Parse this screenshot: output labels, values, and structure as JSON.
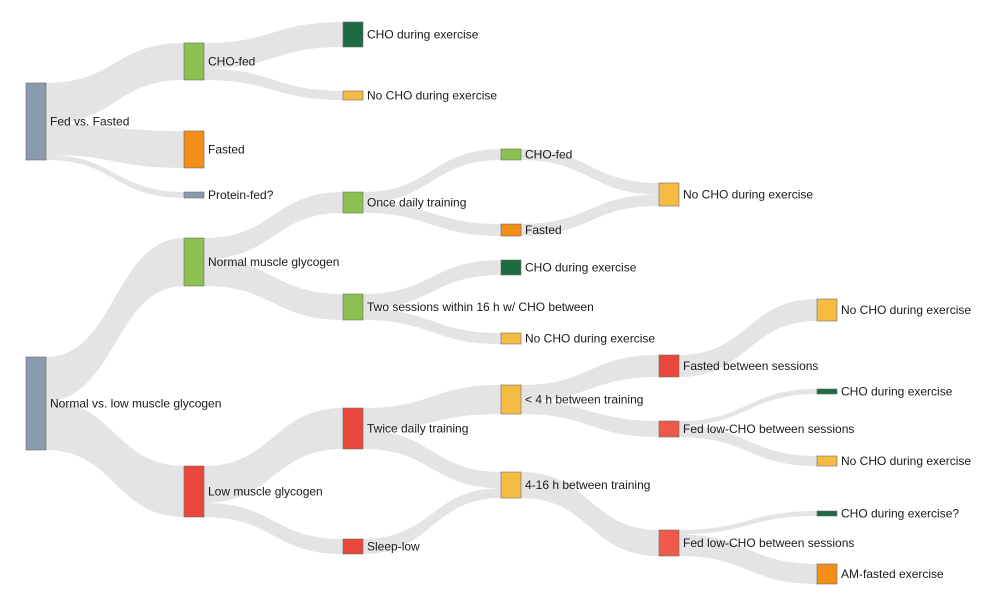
{
  "colors": {
    "slate": "#8b9bae",
    "light_green": "#8cc152",
    "dark_green": "#1e6a43",
    "yellow": "#f6bb42",
    "orange": "#f28d17",
    "red": "#e9473b",
    "red_light": "#ee5a4a",
    "flow": "#e4e4e4"
  },
  "nodes": [
    {
      "id": "fed_vs_fasted",
      "label": "Fed vs. Fasted",
      "color": "slate"
    },
    {
      "id": "cho_fed_1",
      "label": "CHO-fed",
      "color": "light_green"
    },
    {
      "id": "fasted_1",
      "label": "Fasted",
      "color": "orange"
    },
    {
      "id": "protein_fed",
      "label": "Protein-fed?",
      "color": "slate"
    },
    {
      "id": "cho_during_1",
      "label": "CHO during exercise",
      "color": "dark_green"
    },
    {
      "id": "no_cho_during_1",
      "label": "No CHO during exercise",
      "color": "yellow"
    },
    {
      "id": "normal_vs_low",
      "label": "Normal vs. low muscle glycogen",
      "color": "slate"
    },
    {
      "id": "normal_glycogen",
      "label": "Normal muscle glycogen",
      "color": "light_green"
    },
    {
      "id": "low_glycogen",
      "label": "Low muscle glycogen",
      "color": "red"
    },
    {
      "id": "once_daily",
      "label": "Once daily training",
      "color": "light_green"
    },
    {
      "id": "two_sessions",
      "label": "Two sessions within 16 h w/ CHO between",
      "color": "light_green"
    },
    {
      "id": "twice_daily",
      "label": "Twice daily training",
      "color": "red"
    },
    {
      "id": "sleep_low",
      "label": "Sleep-low",
      "color": "red"
    },
    {
      "id": "cho_fed_2",
      "label": "CHO-fed",
      "color": "light_green"
    },
    {
      "id": "fasted_2",
      "label": "Fasted",
      "color": "orange"
    },
    {
      "id": "cho_during_2",
      "label": "CHO during exercise",
      "color": "dark_green"
    },
    {
      "id": "no_cho_during_2",
      "label": "No CHO during exercise",
      "color": "yellow"
    },
    {
      "id": "lt4h",
      "label": "< 4 h between training",
      "color": "yellow"
    },
    {
      "id": "4to16h",
      "label": "4-16 h between training",
      "color": "yellow"
    },
    {
      "id": "no_cho_during_3",
      "label": "No CHO during exercise",
      "color": "yellow"
    },
    {
      "id": "fasted_between",
      "label": "Fasted between sessions",
      "color": "red"
    },
    {
      "id": "fed_lowcho_1",
      "label": "Fed low-CHO between sessions",
      "color": "red_light"
    },
    {
      "id": "fed_lowcho_2",
      "label": "Fed low-CHO between sessions",
      "color": "red_light"
    },
    {
      "id": "no_cho_during_4",
      "label": "No CHO during exercise",
      "color": "yellow"
    },
    {
      "id": "cho_during_3",
      "label": "CHO during exercise",
      "color": "dark_green"
    },
    {
      "id": "no_cho_during_5",
      "label": "No CHO during exercise",
      "color": "yellow"
    },
    {
      "id": "cho_during_q",
      "label": "CHO during exercise?",
      "color": "dark_green"
    },
    {
      "id": "am_fasted",
      "label": "AM-fasted exercise",
      "color": "orange"
    }
  ],
  "links": [
    {
      "source": "fed_vs_fasted",
      "target": "cho_fed_1",
      "value": 4
    },
    {
      "source": "fed_vs_fasted",
      "target": "fasted_1",
      "value": 3
    },
    {
      "source": "fed_vs_fasted",
      "target": "protein_fed",
      "value": 0.5
    },
    {
      "source": "cho_fed_1",
      "target": "cho_during_1",
      "value": 2.7
    },
    {
      "source": "cho_fed_1",
      "target": "no_cho_during_1",
      "value": 1.2
    },
    {
      "source": "normal_vs_low",
      "target": "normal_glycogen",
      "value": 4.5
    },
    {
      "source": "normal_vs_low",
      "target": "low_glycogen",
      "value": 5
    },
    {
      "source": "normal_glycogen",
      "target": "once_daily",
      "value": 2.2
    },
    {
      "source": "normal_glycogen",
      "target": "two_sessions",
      "value": 2.8
    },
    {
      "source": "once_daily",
      "target": "cho_fed_2",
      "value": 1.2
    },
    {
      "source": "once_daily",
      "target": "fasted_2",
      "value": 1.2
    },
    {
      "source": "cho_fed_2",
      "target": "no_cho_during_3",
      "value": 1.1
    },
    {
      "source": "fasted_2",
      "target": "no_cho_during_3",
      "value": 1.1
    },
    {
      "source": "two_sessions",
      "target": "cho_during_2",
      "value": 1.6
    },
    {
      "source": "two_sessions",
      "target": "no_cho_during_2",
      "value": 1.2
    },
    {
      "source": "low_glycogen",
      "target": "twice_daily",
      "value": 4.2
    },
    {
      "source": "low_glycogen",
      "target": "sleep_low",
      "value": 1.6
    },
    {
      "source": "twice_daily",
      "target": "lt4h",
      "value": 3
    },
    {
      "source": "twice_daily",
      "target": "4to16h",
      "value": 2.5
    },
    {
      "source": "sleep_low",
      "target": "4to16h",
      "value": 1.5
    },
    {
      "source": "lt4h",
      "target": "fasted_between",
      "value": 2.2
    },
    {
      "source": "lt4h",
      "target": "fed_lowcho_1",
      "value": 1.8
    },
    {
      "source": "fasted_between",
      "target": "no_cho_during_4",
      "value": 2
    },
    {
      "source": "fed_lowcho_1",
      "target": "cho_during_3",
      "value": 0.4
    },
    {
      "source": "fed_lowcho_1",
      "target": "no_cho_during_5",
      "value": 1
    },
    {
      "source": "4to16h",
      "target": "fed_lowcho_2",
      "value": 2.6
    },
    {
      "source": "fed_lowcho_2",
      "target": "cho_during_q",
      "value": 0.4
    },
    {
      "source": "fed_lowcho_2",
      "target": "am_fasted",
      "value": 2
    }
  ]
}
